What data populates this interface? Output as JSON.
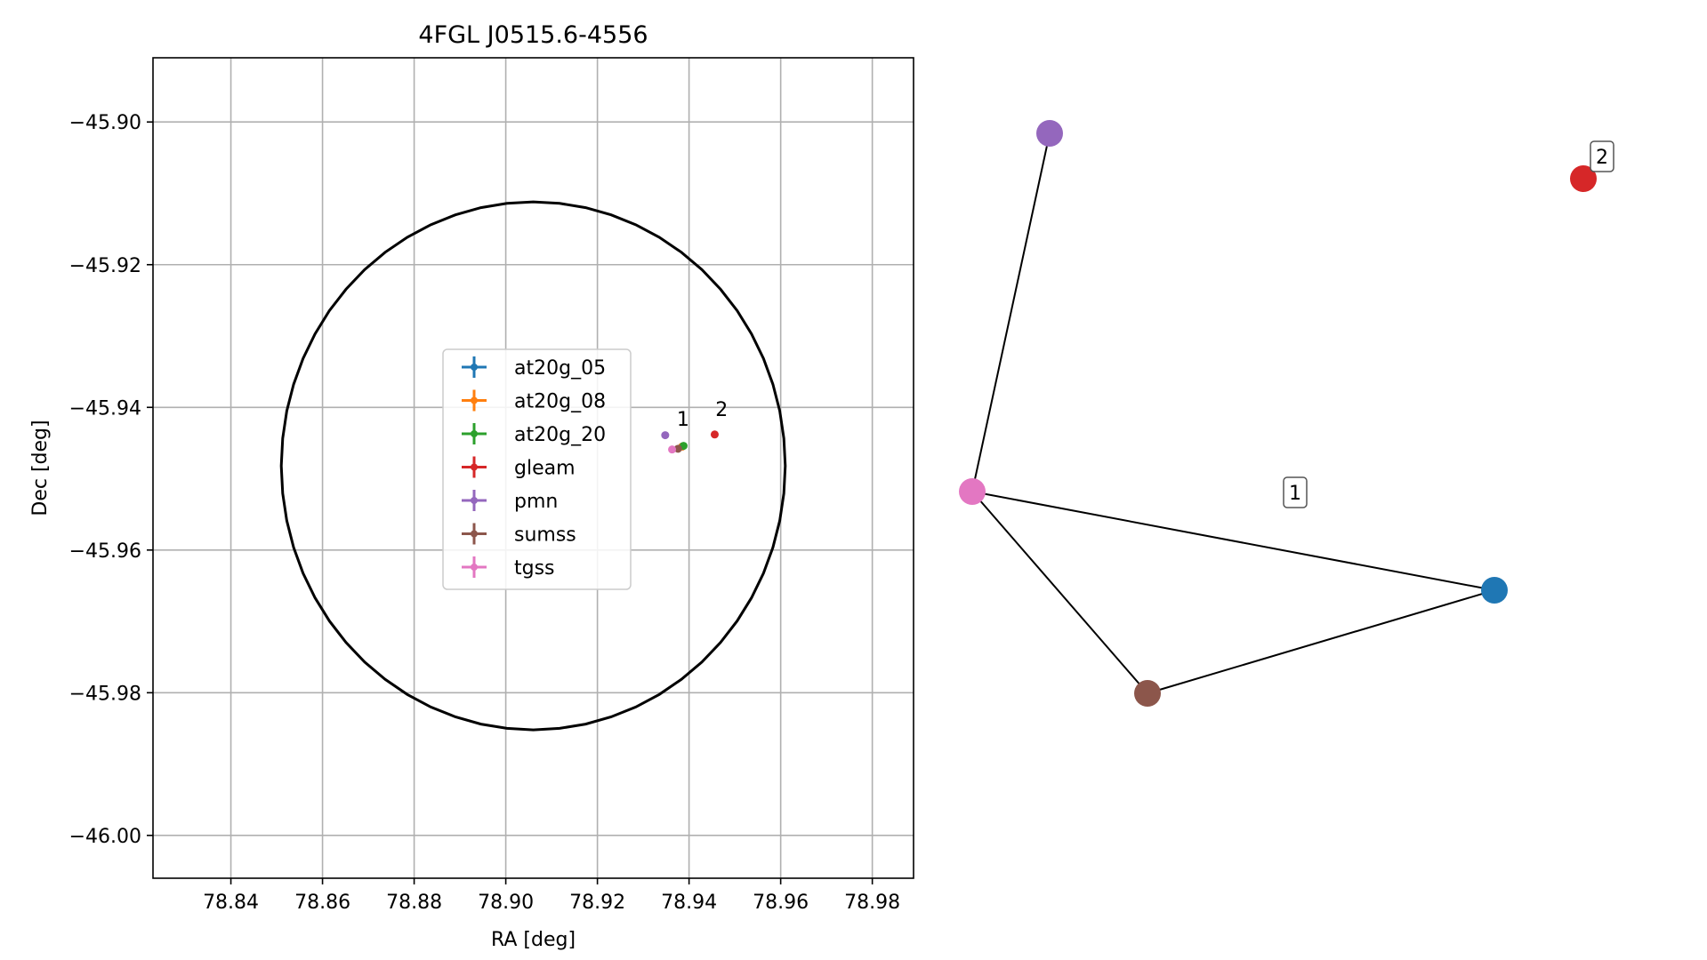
{
  "chart_data": [
    {
      "type": "scatter",
      "title": "4FGL J0515.6-4556",
      "xlabel": "RA [deg]",
      "ylabel": "Dec [deg]",
      "xlim": [
        78.823,
        78.989
      ],
      "ylim": [
        -46.006,
        -45.891
      ],
      "xticks": [
        78.84,
        78.86,
        78.88,
        78.9,
        78.92,
        78.94,
        78.96,
        78.98
      ],
      "xtick_labels": [
        "78.84",
        "78.86",
        "78.88",
        "78.90",
        "78.92",
        "78.94",
        "78.96",
        "78.98"
      ],
      "yticks": [
        -45.9,
        -45.92,
        -45.94,
        -45.96,
        -45.98,
        -46.0
      ],
      "ytick_labels": [
        "−45.90",
        "−45.92",
        "−45.94",
        "−45.96",
        "−45.98",
        "−46.00"
      ],
      "grid": true,
      "legend_position": "center-left",
      "series": [
        {
          "name": "at20g_05",
          "color": "#1f77b4",
          "x": [
            78.9385
          ],
          "y": [
            -45.9455
          ]
        },
        {
          "name": "at20g_08",
          "color": "#ff7f0e",
          "x": [
            78.9385
          ],
          "y": [
            -45.9455
          ]
        },
        {
          "name": "at20g_20",
          "color": "#2ca02c",
          "x": [
            78.9388
          ],
          "y": [
            -45.9454
          ]
        },
        {
          "name": "gleam",
          "color": "#d62728",
          "x": [
            78.9456
          ],
          "y": [
            -45.9438
          ]
        },
        {
          "name": "pmn",
          "color": "#9467bd",
          "x": [
            78.9348
          ],
          "y": [
            -45.9439
          ]
        },
        {
          "name": "sumss",
          "color": "#8c564b",
          "x": [
            78.9376
          ],
          "y": [
            -45.9458
          ]
        },
        {
          "name": "tgss",
          "color": "#e377c2",
          "x": [
            78.9363
          ],
          "y": [
            -45.9459
          ]
        }
      ],
      "ellipse": {
        "center": [
          78.906,
          -45.9482
        ],
        "semi_major_ra": 0.055,
        "semi_minor_dec": 0.037
      },
      "annotations": [
        {
          "text": "1",
          "x": 78.9387,
          "y": -45.9426
        },
        {
          "text": "2",
          "x": 78.9471,
          "y": -45.9412
        }
      ]
    },
    {
      "type": "network",
      "nodes": [
        {
          "id": "pmn",
          "color": "#9467bd"
        },
        {
          "id": "gleam",
          "color": "#d62728"
        },
        {
          "id": "tgss",
          "color": "#e377c2"
        },
        {
          "id": "at20g",
          "color": "#1f77b4"
        },
        {
          "id": "sumss",
          "color": "#8c564b"
        }
      ],
      "edges": [
        [
          "pmn",
          "tgss"
        ],
        [
          "tgss",
          "at20g"
        ],
        [
          "tgss",
          "sumss"
        ],
        [
          "sumss",
          "at20g"
        ]
      ],
      "labels": [
        "1",
        "2"
      ]
    }
  ]
}
